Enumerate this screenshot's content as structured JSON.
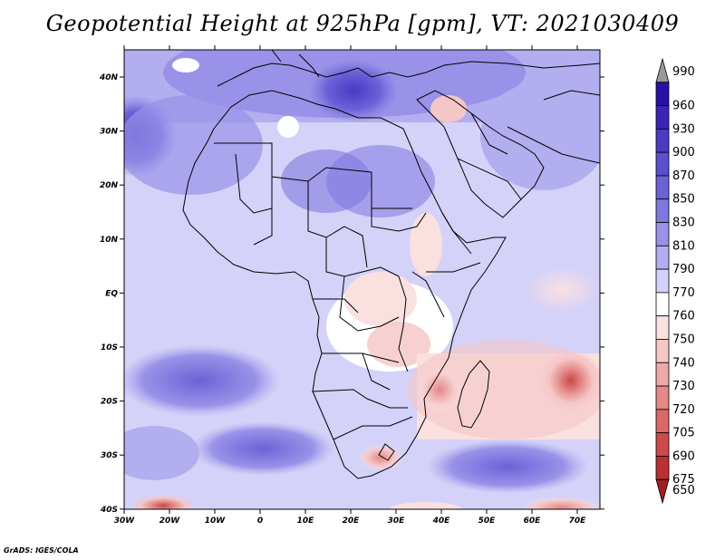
{
  "title": "Geopotential Height at 925hPa [gpm], VT: 2021030409",
  "credit": "GrADS: IGES/COLA",
  "map": {
    "lon_labels": [
      "30W",
      "20W",
      "10W",
      "0",
      "10E",
      "20E",
      "30E",
      "40E",
      "50E",
      "60E",
      "70E"
    ],
    "lat_labels": [
      "40N",
      "30N",
      "20N",
      "10N",
      "EQ",
      "10S",
      "20S",
      "30S",
      "40S"
    ]
  },
  "colorbar": {
    "levels": [
      {
        "label": "990",
        "color": "#9a9a9a"
      },
      {
        "label": "960",
        "color": "#2a0fa6"
      },
      {
        "label": "930",
        "color": "#3a24b8"
      },
      {
        "label": "900",
        "color": "#4a3ac4"
      },
      {
        "label": "870",
        "color": "#5b4ecf"
      },
      {
        "label": "850",
        "color": "#6c62d8"
      },
      {
        "label": "830",
        "color": "#8078e0"
      },
      {
        "label": "810",
        "color": "#9a92e8"
      },
      {
        "label": "790",
        "color": "#b3aef0"
      },
      {
        "label": "770",
        "color": "#d4d2f8"
      },
      {
        "label": "760",
        "color": "#ffffff"
      },
      {
        "label": "750",
        "color": "#fbe0e0"
      },
      {
        "label": "740",
        "color": "#f5c6c6"
      },
      {
        "label": "730",
        "color": "#eea9a9"
      },
      {
        "label": "720",
        "color": "#e48888"
      },
      {
        "label": "705",
        "color": "#d96868"
      },
      {
        "label": "690",
        "color": "#cc4a4a"
      },
      {
        "label": "675",
        "color": "#b93232"
      },
      {
        "label": "650",
        "color": "#a11e1e"
      }
    ]
  }
}
